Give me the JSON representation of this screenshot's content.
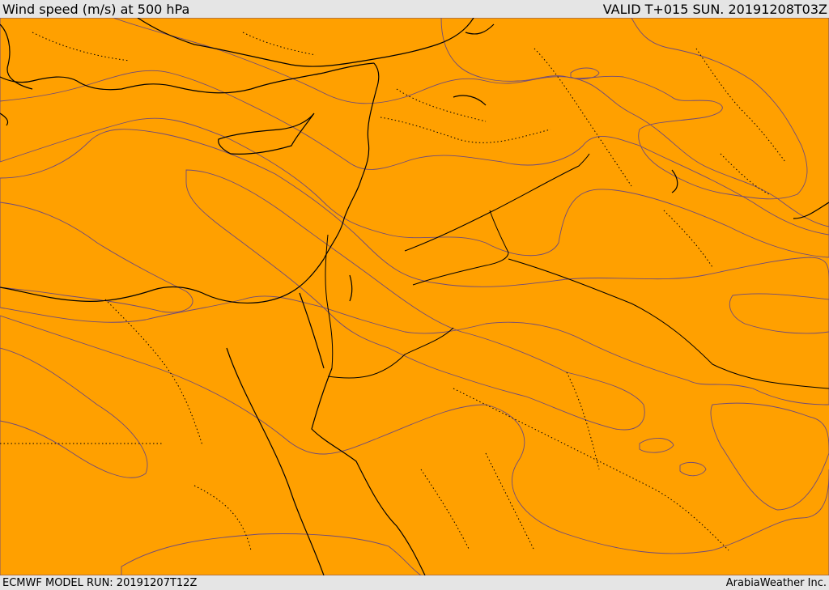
{
  "header": {
    "title": "Wind speed (m/s) at 500 hPa",
    "valid": "VALID T+015 SUN. 20191208T03Z"
  },
  "footer": {
    "model_run": "ECMWF MODEL RUN: 20191207T12Z",
    "credit": "ArabiaWeather Inc."
  },
  "colors": {
    "band_weakest": "#ffdead",
    "band_weak": "#ffff00",
    "band_low": "#ffd700",
    "band_mid_low": "#ffbf00",
    "band_mid": "#ffa000",
    "band_high": "#ff8300",
    "band_highest": "#ff6400",
    "contour_line": "#6f4b7a"
  }
}
